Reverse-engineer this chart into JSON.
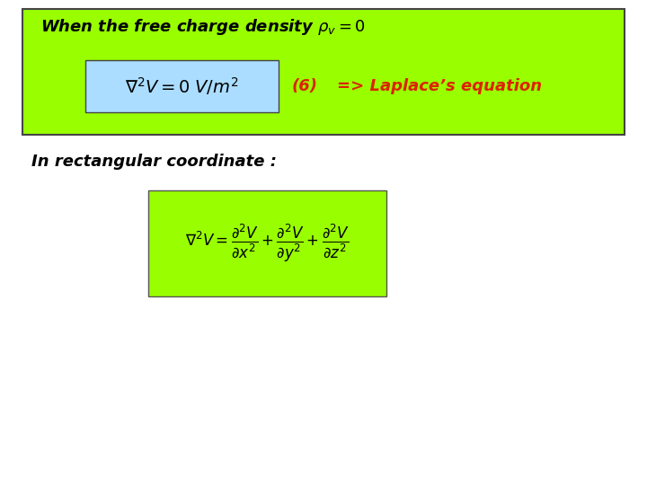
{
  "background_color": "#ffffff",
  "box1_bg": "#99ff00",
  "box1_border": "#444444",
  "inner_box_bg": "#aaddff",
  "title_text": "When the free charge density $\\rho_v = 0$",
  "formula1_text": "$\\nabla^2 V = 0 \\; V/m^2$",
  "eq_number_text": "(6)",
  "eq_number_color": "#dd2200",
  "laplace_text": "=> Laplace’s equation",
  "laplace_color": "#dd2200",
  "rect_label_text": "In rectangular coordinate :",
  "box2_bg": "#99ff00",
  "formula2_text": "$\\nabla^2 V = \\dfrac{\\partial^2 V}{\\partial x^2} + \\dfrac{\\partial^2 V}{\\partial y^2} + \\dfrac{\\partial^2 V}{\\partial z^2}$"
}
